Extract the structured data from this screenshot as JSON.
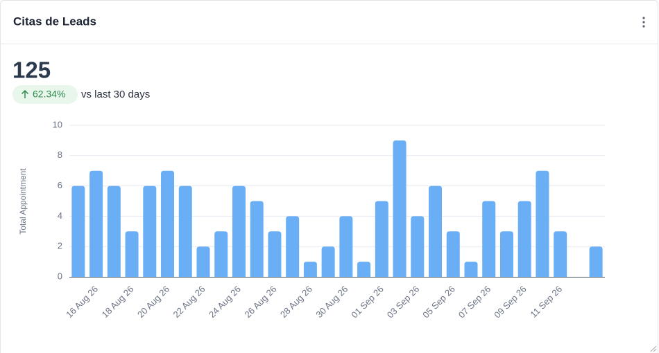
{
  "header": {
    "title": "Citas de Leads"
  },
  "kpi": {
    "value": "125",
    "change": "62.34%",
    "comparison": "vs last 30 days"
  },
  "chart_data": {
    "type": "bar",
    "y_label": "Total Appointment",
    "categories": [
      null,
      "16 Aug 26",
      null,
      "18 Aug 26",
      null,
      "20 Aug 26",
      null,
      "22 Aug 26",
      null,
      "24 Aug 26",
      null,
      "26 Aug 26",
      null,
      "28 Aug 26",
      null,
      "30 Aug 26",
      null,
      "01 Sep 26",
      null,
      "03 Sep 26",
      null,
      "05 Sep 26",
      null,
      "07 Sep 26",
      null,
      "09 Sep 26",
      null,
      "11 Sep 26",
      null,
      null
    ],
    "values": [
      6,
      7,
      6,
      3,
      6,
      7,
      6,
      2,
      3,
      6,
      5,
      3,
      4,
      1,
      2,
      4,
      1,
      5,
      9,
      4,
      6,
      3,
      1,
      5,
      3,
      5,
      7,
      3,
      0,
      2
    ],
    "color": "#6aaef5",
    "ylim": [
      0,
      10
    ],
    "yticks": [
      0,
      2,
      4,
      6,
      8,
      10
    ],
    "grid": true
  }
}
